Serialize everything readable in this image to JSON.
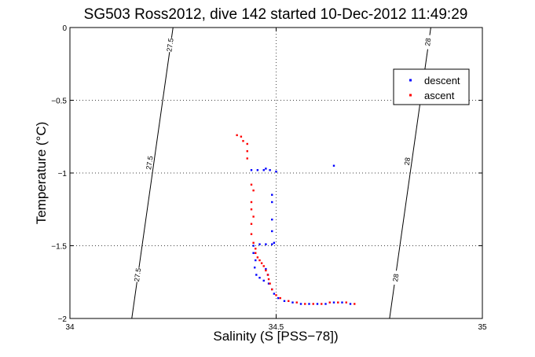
{
  "chart_data": {
    "type": "scatter",
    "title": "SG503 Ross2012, dive 142 started 10-Dec-2012 11:49:29",
    "xlabel": "Salinity (S [PSS−78])",
    "ylabel": "Temperature (°C)",
    "xlim": [
      34,
      35
    ],
    "ylim": [
      -2,
      0
    ],
    "x_ticks": [
      {
        "value": 34,
        "label": "34"
      },
      {
        "value": 34.5,
        "label": "34.5"
      },
      {
        "value": 35,
        "label": "35"
      }
    ],
    "y_ticks": [
      {
        "value": 0,
        "label": "0"
      },
      {
        "value": -0.5,
        "label": "−0.5"
      },
      {
        "value": -1,
        "label": "−1"
      },
      {
        "value": -1.5,
        "label": "−1.5"
      },
      {
        "value": -2,
        "label": "−2"
      }
    ],
    "grid": true,
    "legend": {
      "position": "top-right"
    },
    "contours": [
      {
        "label": "27.5",
        "points": [
          [
            34.25,
            0
          ],
          [
            34.15,
            -2
          ]
        ],
        "label_positions": [
          [
            34.243,
            -0.12
          ],
          [
            34.193,
            -0.93
          ],
          [
            34.164,
            -1.7
          ]
        ]
      },
      {
        "label": "28",
        "points": [
          [
            34.875,
            0
          ],
          [
            34.775,
            -2
          ]
        ],
        "label_positions": [
          [
            34.868,
            -0.1
          ],
          [
            34.818,
            -0.92
          ],
          [
            34.79,
            -1.72
          ]
        ]
      }
    ],
    "series": [
      {
        "name": "descent",
        "color": "#0000ff",
        "marker": "dot",
        "points": [
          [
            34.44,
            -0.98
          ],
          [
            34.455,
            -0.98
          ],
          [
            34.47,
            -0.98
          ],
          [
            34.475,
            -0.97
          ],
          [
            34.485,
            -0.98
          ],
          [
            34.5,
            -0.99
          ],
          [
            34.49,
            -1.15
          ],
          [
            34.49,
            -1.2
          ],
          [
            34.49,
            -1.32
          ],
          [
            34.49,
            -1.4
          ],
          [
            34.495,
            -1.48
          ],
          [
            34.445,
            -1.5
          ],
          [
            34.46,
            -1.49
          ],
          [
            34.475,
            -1.49
          ],
          [
            34.49,
            -1.49
          ],
          [
            34.445,
            -1.55
          ],
          [
            34.45,
            -1.6
          ],
          [
            34.448,
            -1.65
          ],
          [
            34.452,
            -1.7
          ],
          [
            34.46,
            -1.72
          ],
          [
            34.47,
            -1.74
          ],
          [
            34.475,
            -1.66
          ],
          [
            34.48,
            -1.7
          ],
          [
            34.482,
            -1.76
          ],
          [
            34.49,
            -1.8
          ],
          [
            34.495,
            -1.83
          ],
          [
            34.505,
            -1.86
          ],
          [
            34.52,
            -1.88
          ],
          [
            34.54,
            -1.89
          ],
          [
            34.56,
            -1.9
          ],
          [
            34.58,
            -1.9
          ],
          [
            34.6,
            -1.9
          ],
          [
            34.62,
            -1.9
          ],
          [
            34.64,
            -1.89
          ],
          [
            34.66,
            -1.89
          ],
          [
            34.68,
            -1.9
          ],
          [
            34.64,
            -0.95
          ]
        ]
      },
      {
        "name": "ascent",
        "color": "#ff0000",
        "marker": "dot",
        "points": [
          [
            34.405,
            -0.74
          ],
          [
            34.415,
            -0.75
          ],
          [
            34.42,
            -0.78
          ],
          [
            34.43,
            -0.8
          ],
          [
            34.43,
            -0.85
          ],
          [
            34.43,
            -0.9
          ],
          [
            34.44,
            -1.08
          ],
          [
            34.445,
            -1.12
          ],
          [
            34.44,
            -1.2
          ],
          [
            34.44,
            -1.25
          ],
          [
            34.445,
            -1.3
          ],
          [
            34.44,
            -1.35
          ],
          [
            34.44,
            -1.42
          ],
          [
            34.445,
            -1.48
          ],
          [
            34.45,
            -1.52
          ],
          [
            34.45,
            -1.55
          ],
          [
            34.455,
            -1.58
          ],
          [
            34.46,
            -1.6
          ],
          [
            34.465,
            -1.62
          ],
          [
            34.47,
            -1.64
          ],
          [
            34.475,
            -1.67
          ],
          [
            34.48,
            -1.7
          ],
          [
            34.482,
            -1.73
          ],
          [
            34.485,
            -1.76
          ],
          [
            34.49,
            -1.8
          ],
          [
            34.5,
            -1.84
          ],
          [
            34.51,
            -1.86
          ],
          [
            34.53,
            -1.88
          ],
          [
            34.55,
            -1.89
          ],
          [
            34.57,
            -1.9
          ],
          [
            34.59,
            -1.9
          ],
          [
            34.61,
            -1.9
          ],
          [
            34.63,
            -1.89
          ],
          [
            34.65,
            -1.89
          ],
          [
            34.67,
            -1.89
          ],
          [
            34.69,
            -1.9
          ]
        ]
      }
    ]
  }
}
